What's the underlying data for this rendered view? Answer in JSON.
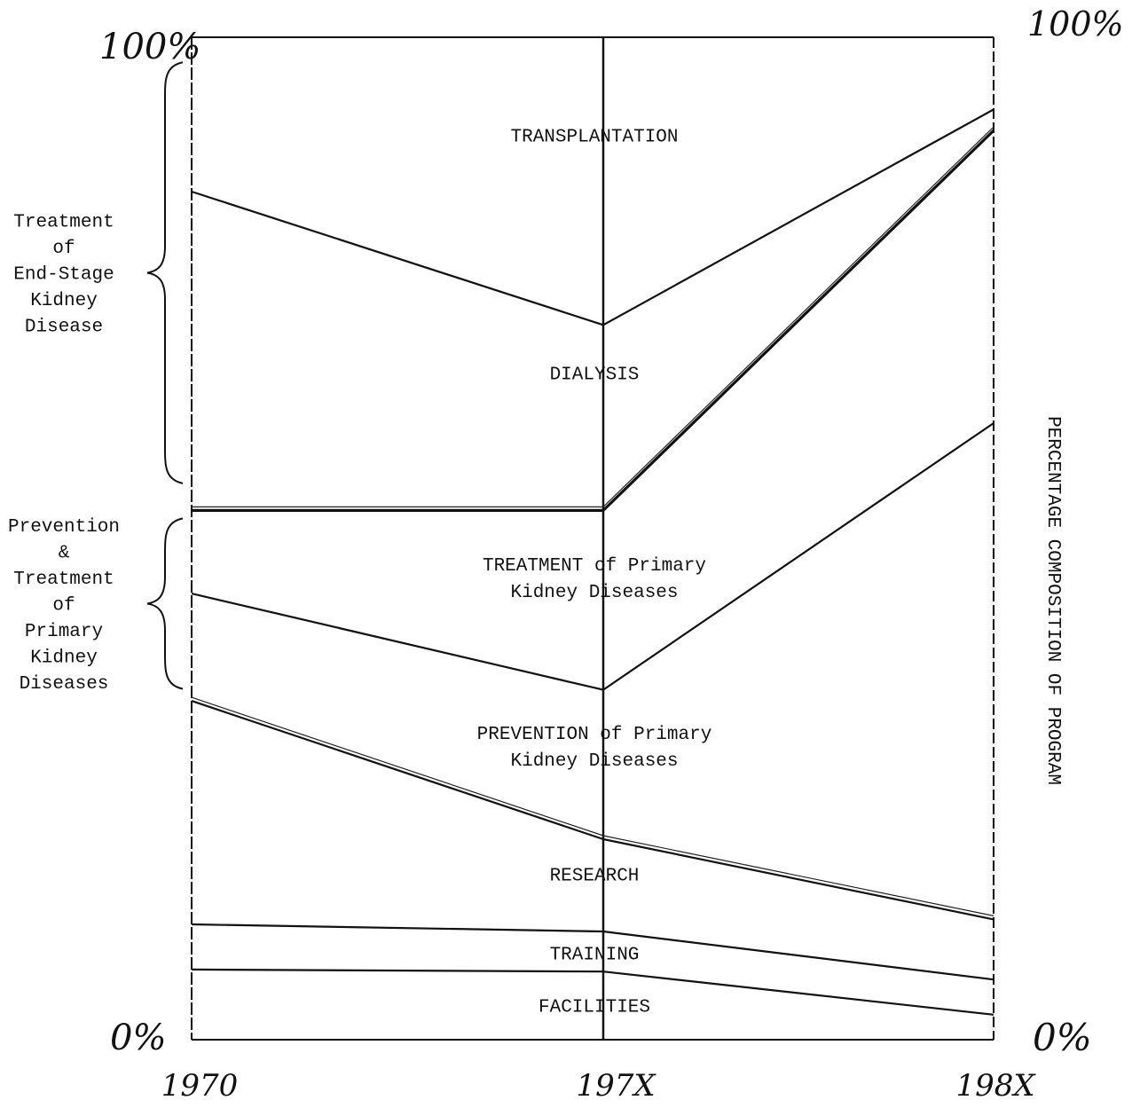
{
  "chart_data": {
    "type": "area",
    "stacked": true,
    "x": [
      "1970",
      "197X",
      "198X"
    ],
    "y_left_top_label": "100%",
    "y_left_bottom_label": "0%",
    "y_right_top_label": "100%",
    "y_right_bottom_label": "0%",
    "ylabel_right": "PERCENTAGE COMPOSITION OF PROGRAM",
    "ylim": [
      0,
      100
    ],
    "boundaries": [
      {
        "name": "facilities_top",
        "values": [
          7.0,
          6.8,
          2.5
        ]
      },
      {
        "name": "training_top",
        "values": [
          11.5,
          10.8,
          6.0
        ]
      },
      {
        "name": "research_top",
        "values": [
          33.8,
          20.0,
          12.0
        ]
      },
      {
        "name": "prevention_top",
        "values": [
          44.5,
          34.9,
          61.5
        ]
      },
      {
        "name": "treatment_primary_top",
        "values": [
          52.8,
          52.8,
          90.7
        ]
      },
      {
        "name": "dialysis_top",
        "values": [
          84.6,
          71.3,
          92.8
        ]
      }
    ],
    "series": [
      {
        "name": "FACILITIES",
        "values": [
          7.0,
          6.8,
          2.5
        ]
      },
      {
        "name": "TRAINING",
        "values": [
          4.5,
          4.0,
          3.5
        ]
      },
      {
        "name": "RESEARCH",
        "values": [
          22.3,
          9.2,
          6.0
        ]
      },
      {
        "name": "PREVENTION of Primary Kidney Diseases",
        "values": [
          10.7,
          14.9,
          49.5
        ]
      },
      {
        "name": "TREATMENT of Primary Kidney Diseases",
        "values": [
          8.3,
          17.9,
          29.2
        ]
      },
      {
        "name": "DIALYSIS",
        "values": [
          31.8,
          18.5,
          2.1
        ]
      },
      {
        "name": "TRANSPLANTATION",
        "values": [
          15.4,
          28.7,
          7.2
        ]
      }
    ],
    "region_labels": [
      {
        "key": "transplantation",
        "lines": [
          "TRANSPLANTATION"
        ],
        "x_index": 1,
        "y_value": 89.6
      },
      {
        "key": "dialysis",
        "lines": [
          "DIALYSIS"
        ],
        "x_index": 1,
        "y_value": 65.9
      },
      {
        "key": "treatment",
        "lines": [
          "TREATMENT of Primary",
          "Kidney Diseases"
        ],
        "x_index": 1,
        "y_value": 46.8
      },
      {
        "key": "prevention",
        "lines": [
          "PREVENTION of Primary",
          "Kidney Diseases"
        ],
        "x_index": 1,
        "y_value": 30.0
      },
      {
        "key": "research",
        "lines": [
          "RESEARCH"
        ],
        "x_index": 1,
        "y_value": 15.9
      },
      {
        "key": "training",
        "lines": [
          "TRAINING"
        ],
        "x_index": 1,
        "y_value": 8.0
      },
      {
        "key": "facilities",
        "lines": [
          "FACILITIES"
        ],
        "x_index": 1,
        "y_value": 2.8
      }
    ],
    "brace_groups": [
      {
        "key": "esrd",
        "lines": [
          "Treatment",
          "of",
          "End-Stage",
          "Kidney",
          "Disease"
        ],
        "from_value": 55.5,
        "to_value": 97.5
      },
      {
        "key": "primary",
        "lines": [
          "Prevention",
          "&",
          "Treatment",
          "of",
          "Primary",
          "Kidney",
          "Diseases"
        ],
        "from_value": 35.0,
        "to_value": 52.0
      }
    ],
    "grid": false
  }
}
